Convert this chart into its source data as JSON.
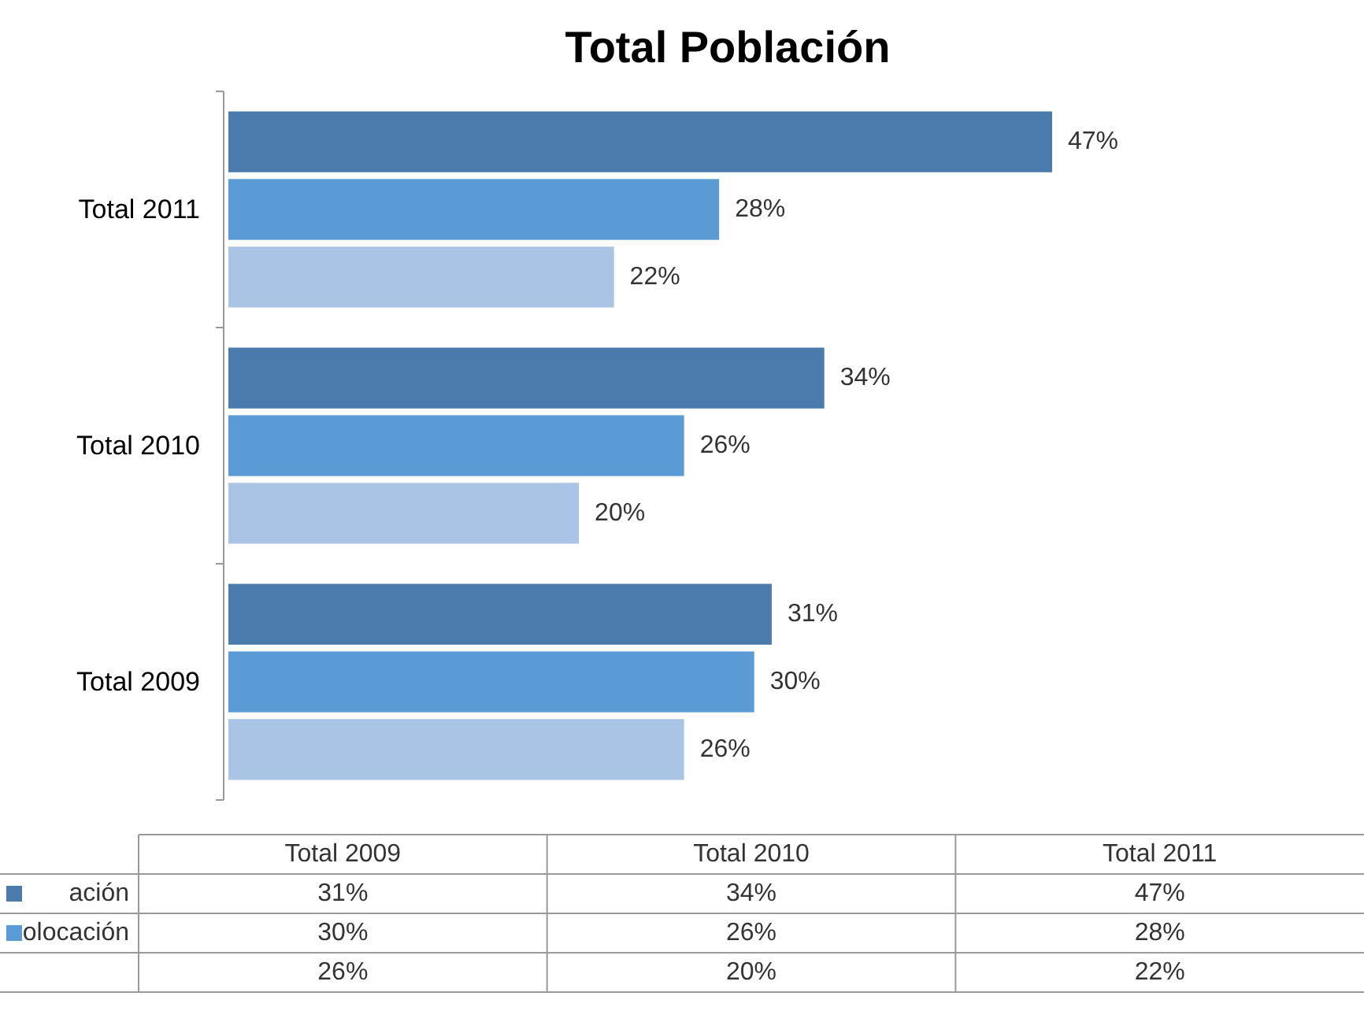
{
  "chart_data": {
    "type": "bar",
    "title": "Total Población",
    "orientation": "horizontal",
    "categories": [
      "Total 2011",
      "Total 2010",
      "Total 2009"
    ],
    "series": [
      {
        "name": "ación",
        "color": "#4a7bac",
        "values": [
          47,
          34,
          31
        ],
        "value_labels": [
          "47%",
          "34%",
          "31%"
        ]
      },
      {
        "name": "olocación",
        "color": "#5b9bd5",
        "values": [
          28,
          26,
          30
        ],
        "value_labels": [
          "28%",
          "26%",
          "30%"
        ]
      },
      {
        "color": "#a9c4e4",
        "values": [
          22,
          20,
          26
        ],
        "value_labels": [
          "22%",
          "20%",
          "26%"
        ]
      }
    ],
    "legend": "bottom"
  }
}
